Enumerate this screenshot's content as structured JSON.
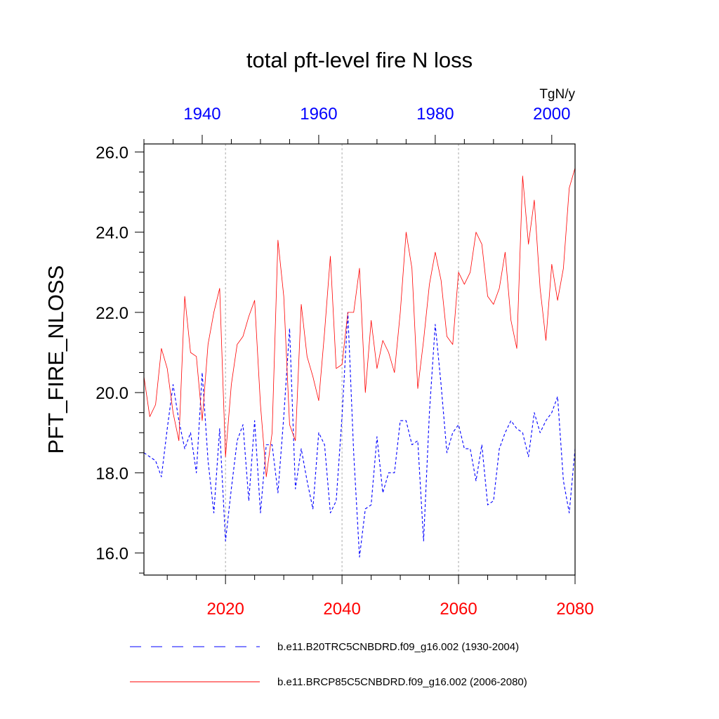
{
  "chart_data": {
    "type": "line",
    "title": "total pft-level fire N loss",
    "ylabel": "PFT_FIRE_NLOSS",
    "units": "TgN/y",
    "ylim": [
      15.45,
      26.2
    ],
    "y_ticks": [
      16.0,
      18.0,
      20.0,
      22.0,
      24.0,
      26.0
    ],
    "y_tick_labels": [
      "16.0",
      "18.0",
      "20.0",
      "22.0",
      "24.0",
      "26.0"
    ],
    "bottom_axis": {
      "range": [
        2006,
        2080
      ],
      "ticks": [
        2020,
        2040,
        2060,
        2080
      ],
      "labels": [
        "2020",
        "2040",
        "2060",
        "2080"
      ],
      "color": "#ff0000"
    },
    "top_axis": {
      "range": [
        1930,
        2004
      ],
      "ticks": [
        1940,
        1960,
        1980,
        2000
      ],
      "labels": [
        "1940",
        "1960",
        "1980",
        "2000"
      ],
      "color": "#0000ff"
    },
    "grid": "vertical dotted at major ticks",
    "series": [
      {
        "name": "b.e11.B20TRC5CNBDRD.f09_g16.002 (1930-2004)",
        "color": "#0000ff",
        "style": "dashed",
        "x_start": 1930,
        "values": [
          18.5,
          18.4,
          18.3,
          17.9,
          19.1,
          20.2,
          19.3,
          18.6,
          19.0,
          18.0,
          20.5,
          18.3,
          17.0,
          19.1,
          16.3,
          17.6,
          18.8,
          19.2,
          17.3,
          19.3,
          17.0,
          18.7,
          18.7,
          17.5,
          19.4,
          21.6,
          17.6,
          18.6,
          17.8,
          17.1,
          19.0,
          18.7,
          17.0,
          17.3,
          19.4,
          22.0,
          18.5,
          15.9,
          17.1,
          17.2,
          18.9,
          17.5,
          18.0,
          18.0,
          19.3,
          19.3,
          18.7,
          18.8,
          16.3,
          19.5,
          21.7,
          20.2,
          18.5,
          19.0,
          19.2,
          18.6,
          18.6,
          17.8,
          18.7,
          17.2,
          17.3,
          18.6,
          19.0,
          19.3,
          19.1,
          19.0,
          18.4,
          19.5,
          19.0,
          19.3,
          19.5,
          19.9,
          17.8,
          17.0,
          18.6
        ]
      },
      {
        "name": "b.e11.BRCP85C5CNBDRD.f09_g16.002 (2006-2080)",
        "color": "#ff0000",
        "style": "solid",
        "x_start": 2006,
        "values": [
          20.4,
          19.4,
          19.7,
          21.1,
          20.6,
          19.5,
          18.8,
          22.4,
          21.0,
          20.9,
          19.3,
          21.2,
          22.0,
          22.6,
          18.4,
          20.2,
          21.2,
          21.4,
          21.9,
          22.3,
          19.7,
          17.9,
          19.0,
          23.8,
          22.4,
          19.2,
          18.8,
          22.2,
          20.9,
          20.4,
          19.8,
          21.5,
          23.4,
          20.6,
          20.7,
          22.0,
          22.0,
          23.1,
          20.0,
          21.8,
          20.6,
          21.3,
          21.0,
          20.5,
          22.0,
          24.0,
          23.1,
          20.1,
          21.3,
          22.7,
          23.5,
          22.8,
          21.4,
          21.2,
          23.0,
          22.7,
          23.0,
          24.0,
          23.7,
          22.4,
          22.2,
          22.6,
          23.5,
          21.8,
          21.1,
          25.4,
          23.7,
          24.8,
          22.6,
          21.3,
          23.2,
          22.3,
          23.1,
          25.1,
          25.6
        ]
      }
    ],
    "legend": {
      "position": "bottom"
    }
  }
}
